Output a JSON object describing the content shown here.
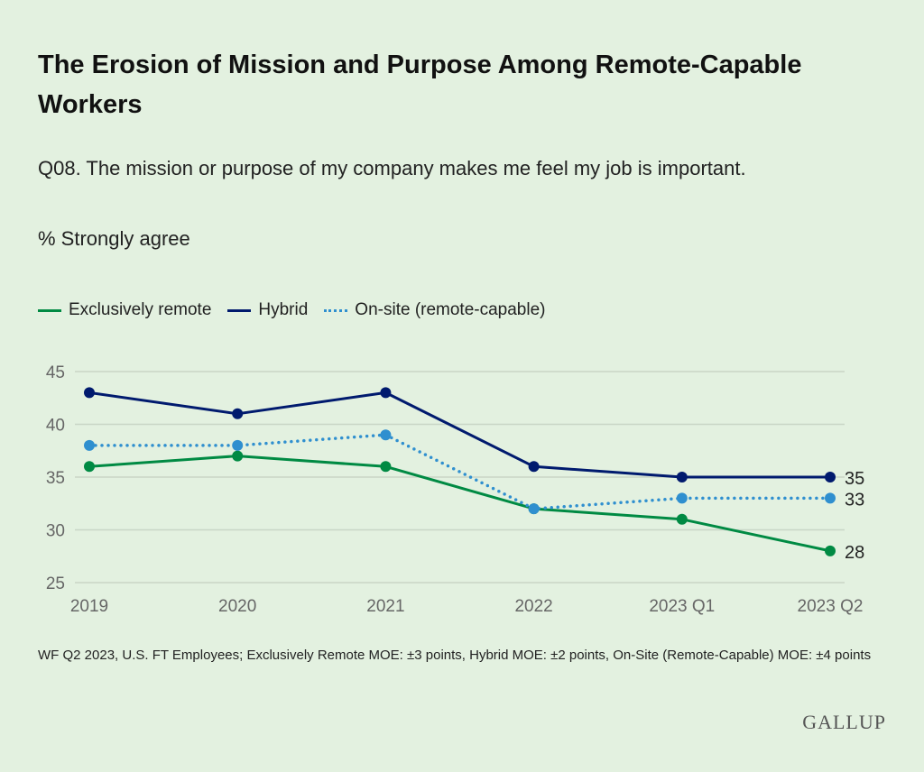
{
  "title": "The Erosion of Mission and Purpose Among Remote-Capable Workers",
  "subtitle": "Q08. The mission or purpose of my company makes me feel my job is important.",
  "unit_label": "% Strongly agree",
  "note": "WF Q2 2023, U.S. FT Employees; Exclusively Remote MOE: ±3 points, Hybrid MOE: ±2 points, On-Site (Remote-Capable) MOE: ±4 points",
  "logo": "GALLUP",
  "chart_data": {
    "type": "line",
    "categories": [
      "2019",
      "2020",
      "2021",
      "2022",
      "2023 Q1",
      "2023 Q2"
    ],
    "ylim": [
      25,
      45
    ],
    "yticks": [
      "25",
      "30",
      "35",
      "40",
      "45"
    ],
    "grid": true,
    "legend_position": "top-left",
    "series": [
      {
        "name": "Exclusively remote",
        "color": "#008a43",
        "style": "solid",
        "values": [
          36,
          37,
          36,
          32,
          31,
          28
        ],
        "end_label": "28"
      },
      {
        "name": "Hybrid",
        "color": "#001a6e",
        "style": "solid",
        "values": [
          43,
          41,
          43,
          36,
          35,
          35
        ],
        "end_label": "35"
      },
      {
        "name": "On-site (remote-capable)",
        "color": "#2f8fcf",
        "style": "dotted",
        "values": [
          38,
          38,
          39,
          32,
          33,
          33
        ],
        "end_label": "33"
      }
    ]
  }
}
